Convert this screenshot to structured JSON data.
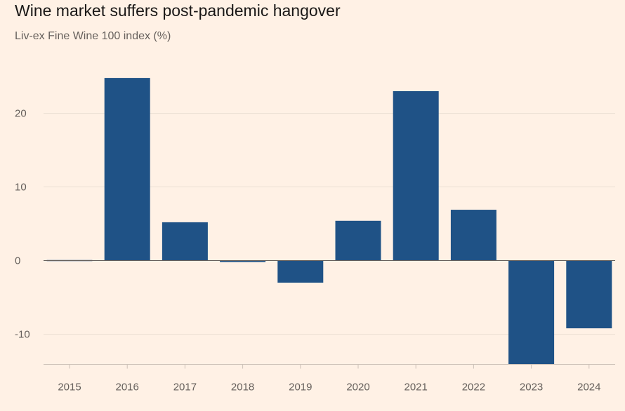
{
  "header": {
    "title": "Wine market suffers post-pandemic hangover",
    "subtitle": "Liv-ex Fine Wine 100 index (%)"
  },
  "colors": {
    "background": "#fff1e5",
    "bar": "#1f5286",
    "grid": "#ebdfd3",
    "zero_line": "#66605c",
    "axis": "#ccc1b7",
    "tick_text": "#66605c",
    "title": "#1a1817"
  },
  "chart_data": {
    "type": "bar",
    "title": "Wine market suffers post-pandemic hangover",
    "subtitle": "Liv-ex Fine Wine 100 index (%)",
    "xlabel": "",
    "ylabel": "",
    "categories": [
      "2015",
      "2016",
      "2017",
      "2018",
      "2019",
      "2020",
      "2021",
      "2022",
      "2023",
      "2024"
    ],
    "values": [
      0.1,
      24.8,
      5.2,
      -0.2,
      -3.0,
      5.4,
      23.0,
      6.9,
      -14.1,
      -9.2
    ],
    "y_ticks": [
      "20",
      "10",
      "0",
      "-10"
    ],
    "ylim": [
      -14.1,
      25
    ],
    "grid": true,
    "legend": "none"
  }
}
